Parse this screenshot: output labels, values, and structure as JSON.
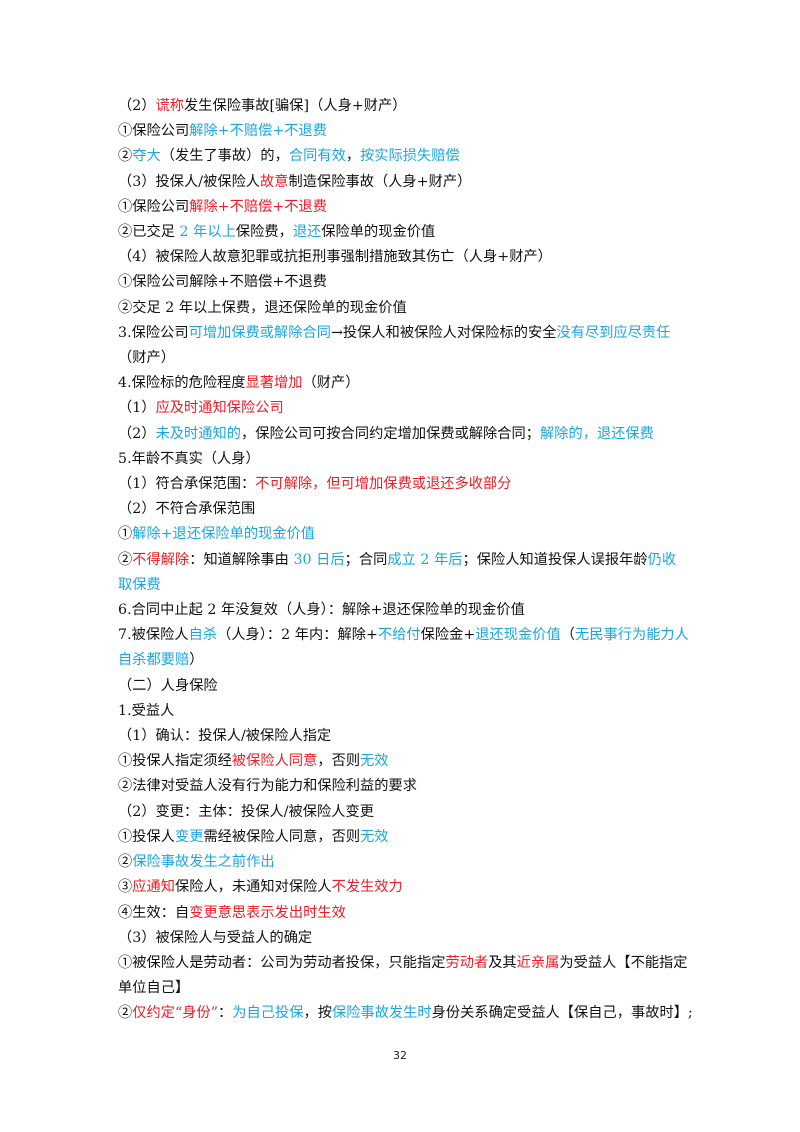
{
  "colors": {
    "text": "#111111",
    "red": "#ee1c25",
    "blue": "#1aa7e0"
  },
  "lines": [
    {
      "segs": [
        [
          "k",
          "（2）"
        ],
        [
          "r",
          "谎称"
        ],
        [
          "k",
          "发生保险事故[骗保]（人身+财产）"
        ]
      ]
    },
    {
      "segs": [
        [
          "k",
          "①保险公司"
        ],
        [
          "b",
          "解除+不赔偿+不退费"
        ]
      ]
    },
    {
      "segs": [
        [
          "k",
          "②"
        ],
        [
          "b",
          "夺大"
        ],
        [
          "k",
          "（发生了事故）的，"
        ],
        [
          "b",
          "合同有效"
        ],
        [
          "k",
          "，"
        ],
        [
          "b",
          "按实际损失赔偿"
        ]
      ]
    },
    {
      "segs": [
        [
          "k",
          "（3）投保人/被保险人"
        ],
        [
          "r",
          "故意"
        ],
        [
          "k",
          "制造保险事故（人身+财产）"
        ]
      ]
    },
    {
      "segs": [
        [
          "k",
          "①保险公司"
        ],
        [
          "r",
          "解除+不赔偿+不退费"
        ]
      ]
    },
    {
      "segs": [
        [
          "k",
          "②已交足 "
        ],
        [
          "b",
          "2 年以上"
        ],
        [
          "k",
          "保险费，"
        ],
        [
          "b",
          "退还"
        ],
        [
          "k",
          "保险单的现金价值"
        ]
      ]
    },
    {
      "segs": [
        [
          "k",
          "（4）被保险人故意犯罪或抗拒刑事强制措施致其伤亡（人身+财产）"
        ]
      ]
    },
    {
      "segs": [
        [
          "k",
          "①保险公司解除+不赔偿+不退费"
        ]
      ]
    },
    {
      "segs": [
        [
          "k",
          "②交足 2 年以上保费，退还保险单的现金价值"
        ]
      ]
    },
    {
      "wrap": true,
      "segs": [
        [
          "k",
          "3.保险公司"
        ],
        [
          "b",
          "可增加保费或解除合同"
        ],
        [
          "k",
          "→投保人和被保险人对保险标的安全"
        ],
        [
          "b",
          "没有尽到应尽责任"
        ],
        [
          "k",
          "（财产）"
        ]
      ]
    },
    {
      "segs": [
        [
          "k",
          "4.保险标的危险程度"
        ],
        [
          "r",
          "显著增加"
        ],
        [
          "k",
          "（财产）"
        ]
      ]
    },
    {
      "segs": [
        [
          "k",
          "（1）"
        ],
        [
          "r",
          "应及时通知保险公司"
        ]
      ]
    },
    {
      "segs": [
        [
          "k",
          "（2）"
        ],
        [
          "b",
          "未及时通知的"
        ],
        [
          "k",
          "，保险公司可按合同约定增加保费或解除合同；"
        ],
        [
          "b",
          "解除的，退还保费"
        ]
      ]
    },
    {
      "segs": [
        [
          "k",
          "5.年龄不真实（人身）"
        ]
      ]
    },
    {
      "segs": [
        [
          "k",
          "（1）符合承保范围："
        ],
        [
          "r",
          "不可解除，但可增加保费或退还多收部分"
        ]
      ]
    },
    {
      "segs": [
        [
          "k",
          "（2）不符合承保范围"
        ]
      ]
    },
    {
      "segs": [
        [
          "k",
          "①"
        ],
        [
          "b",
          "解除+退还保险单的现金价值"
        ]
      ]
    },
    {
      "wrap": true,
      "segs": [
        [
          "k",
          "②"
        ],
        [
          "r",
          "不得解除"
        ],
        [
          "k",
          "：知道解除事由 "
        ],
        [
          "b",
          "30 日后"
        ],
        [
          "k",
          "；合同"
        ],
        [
          "b",
          "成立 2 年后"
        ],
        [
          "k",
          "；保险人知道投保人误报年龄"
        ],
        [
          "b",
          "仍收取保费"
        ]
      ]
    },
    {
      "segs": [
        [
          "k",
          "6.合同中止起 2 年没复效（人身）：解除+退还保险单的现金价值"
        ]
      ]
    },
    {
      "wrap": true,
      "segs": [
        [
          "k",
          "7.被保险人"
        ],
        [
          "b",
          "自杀"
        ],
        [
          "k",
          "（人身）：2 年内：解除+"
        ],
        [
          "b",
          "不给付"
        ],
        [
          "k",
          "保险金+"
        ],
        [
          "b",
          "退还现金价值"
        ],
        [
          "k",
          "（"
        ],
        [
          "b",
          "无民事行为能力人自杀都要赔"
        ],
        [
          "k",
          "）"
        ]
      ]
    },
    {
      "segs": [
        [
          "k",
          "（二）人身保险"
        ]
      ]
    },
    {
      "segs": [
        [
          "k",
          "1.受益人"
        ]
      ]
    },
    {
      "segs": [
        [
          "k",
          "（1）确认：投保人/被保险人指定"
        ]
      ]
    },
    {
      "segs": [
        [
          "k",
          "①投保人指定须经"
        ],
        [
          "r",
          "被保险人同意"
        ],
        [
          "k",
          "，否则"
        ],
        [
          "b",
          "无效"
        ]
      ]
    },
    {
      "segs": [
        [
          "k",
          "②法律对受益人没有行为能力和保险利益的要求"
        ]
      ]
    },
    {
      "segs": [
        [
          "k",
          "（2）变更：主体：投保人/被保险人变更"
        ]
      ]
    },
    {
      "segs": [
        [
          "k",
          "①投保人"
        ],
        [
          "b",
          "变更"
        ],
        [
          "k",
          "需经被保险人同意，否则"
        ],
        [
          "b",
          "无效"
        ]
      ]
    },
    {
      "segs": [
        [
          "k",
          "②"
        ],
        [
          "b",
          "保险事故发生之前作出"
        ]
      ]
    },
    {
      "segs": [
        [
          "k",
          "③"
        ],
        [
          "r",
          "应通知"
        ],
        [
          "k",
          "保险人，未通知对保险人"
        ],
        [
          "r",
          "不发生效力"
        ]
      ]
    },
    {
      "segs": [
        [
          "k",
          "④生效：自"
        ],
        [
          "r",
          "变更意思表示发出时生效"
        ]
      ]
    },
    {
      "segs": [
        [
          "k",
          "（3）被保险人与受益人的确定"
        ]
      ]
    },
    {
      "wrap": true,
      "segs": [
        [
          "k",
          "①被保险人是劳动者：公司为劳动者投保，只能指定"
        ],
        [
          "r",
          "劳动者"
        ],
        [
          "k",
          "及其"
        ],
        [
          "r",
          "近亲属"
        ],
        [
          "k",
          "为受益人【不能指定单位自己】"
        ]
      ]
    },
    {
      "segs": [
        [
          "k",
          "②"
        ],
        [
          "r",
          "仅约定“身份”"
        ],
        [
          "k",
          "："
        ],
        [
          "b",
          "为自己投保"
        ],
        [
          "k",
          "，按"
        ],
        [
          "b",
          "保险事故发生时"
        ],
        [
          "k",
          "身份关系确定受益人【保自己，事故时】;"
        ]
      ]
    }
  ],
  "page_number": "32"
}
